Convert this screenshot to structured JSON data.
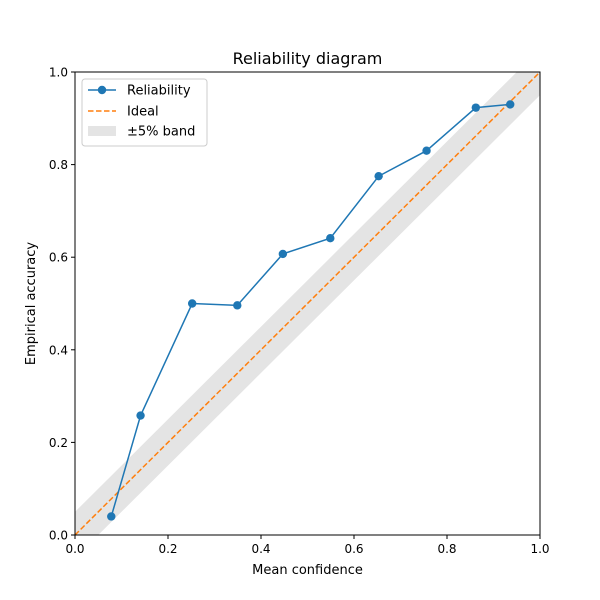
{
  "chart_data": {
    "type": "line",
    "title": "Reliability diagram",
    "xlabel": "Mean confidence",
    "ylabel": "Empirical accuracy",
    "xlim": [
      0,
      1
    ],
    "ylim": [
      0,
      1
    ],
    "xticks": [
      "0.0",
      "0.2",
      "0.4",
      "0.6",
      "0.8",
      "1.0"
    ],
    "yticks": [
      "0.0",
      "0.2",
      "0.4",
      "0.6",
      "0.8",
      "1.0"
    ],
    "grid": false,
    "legend_position": "top-left",
    "series": [
      {
        "name": "Reliability",
        "style": "line-with-markers",
        "color": "#1f77b4",
        "x": [
          0.078,
          0.141,
          0.252,
          0.349,
          0.447,
          0.549,
          0.653,
          0.756,
          0.862,
          0.936
        ],
        "y": [
          0.04,
          0.258,
          0.5,
          0.496,
          0.607,
          0.641,
          0.775,
          0.83,
          0.923,
          0.93
        ]
      },
      {
        "name": "Ideal",
        "style": "dashed",
        "color": "#ff7f0e",
        "x": [
          0,
          1
        ],
        "y": [
          0,
          1
        ]
      },
      {
        "name": "±5% band",
        "style": "band",
        "color": "#e4e4e4",
        "half_width": 0.05
      }
    ]
  }
}
